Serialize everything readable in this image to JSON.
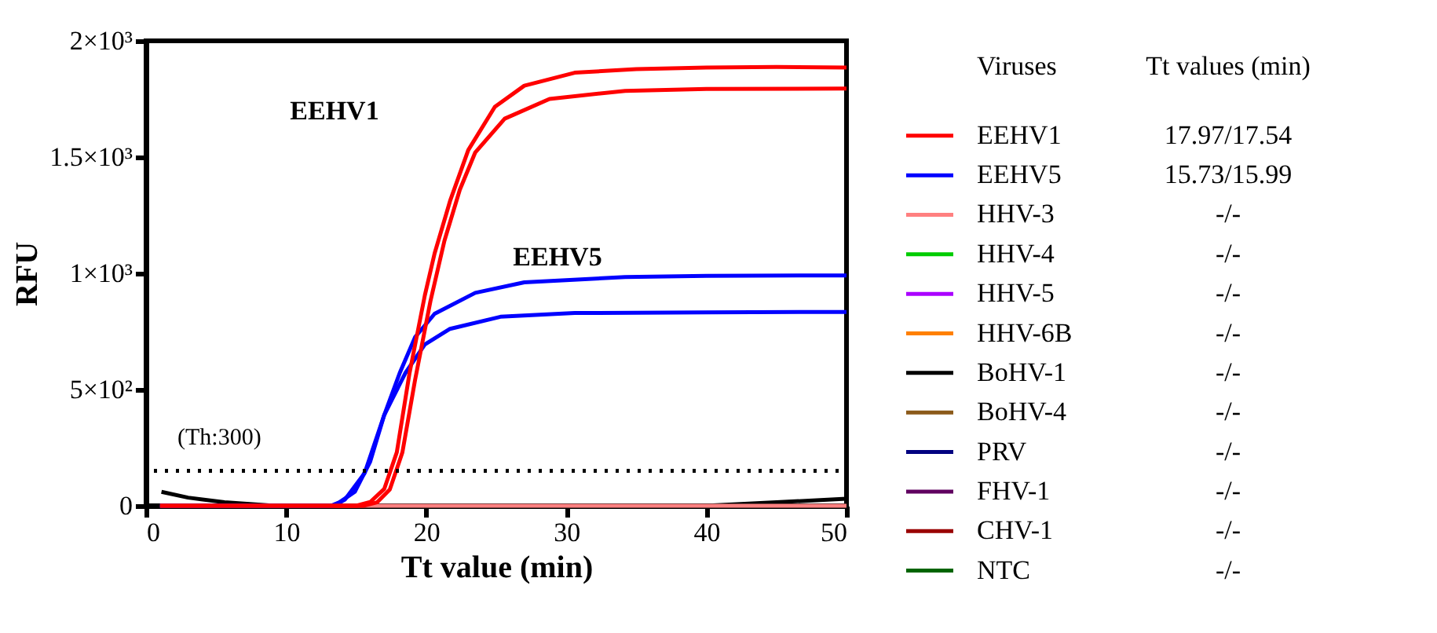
{
  "chart_data": {
    "type": "line",
    "xlabel": "Tt value (min)",
    "ylabel": "RFU",
    "legend_title": "Viruses",
    "xlim": [
      0,
      50
    ],
    "xticks": [
      0,
      10,
      20,
      30,
      40,
      50
    ],
    "ylim": [
      0,
      2000
    ],
    "yticks": [
      0,
      {
        "value": 500,
        "label": "5×10²"
      },
      {
        "value": 1000,
        "label": "1×10³"
      },
      {
        "value": 1500,
        "label": "1.5×10³"
      },
      {
        "value": 2000,
        "label": "2×10³"
      }
    ],
    "grid": false,
    "legend": "right",
    "marker": "none",
    "line_style": "solid",
    "ref_lines": [
      {
        "axis": "y",
        "value": 150,
        "line_style": "dotted",
        "color": "#000000"
      }
    ],
    "annotations": [
      "EEHV1",
      "EEHV5",
      "(Th:300)",
      "Tt values (min)",
      "17.97/17.54",
      "15.73/15.99",
      "-/-",
      "-/-",
      "-/-",
      "-/-",
      "-/-",
      "-/-",
      "-/-",
      "-/-",
      "-/-",
      "-/-"
    ],
    "series": [
      {
        "name": "EEHV1",
        "color": "#ff0000",
        "x": [
          1,
          10,
          15,
          16,
          17,
          17.9,
          18.8,
          19.9,
          20.6,
          21.7,
          23,
          24.9,
          27,
          30.6,
          35,
          40,
          45,
          50
        ],
        "values": [
          0,
          0,
          0,
          16,
          72,
          230,
          568,
          905,
          1086,
          1311,
          1530,
          1716,
          1807,
          1863,
          1878,
          1885,
          1888,
          1885
        ]
      },
      {
        "color": "#ff0000",
        "x": [
          1,
          10,
          15.5,
          16.5,
          17.4,
          18.3,
          19.2,
          20.3,
          21.3,
          22.4,
          23.5,
          25.6,
          28.8,
          34.2,
          40,
          50
        ],
        "values": [
          0,
          0,
          0,
          15,
          70,
          230,
          540,
          880,
          1140,
          1360,
          1520,
          1665,
          1750,
          1785,
          1793,
          1795
        ]
      },
      {
        "name": "EEHV5",
        "color": "#0000ff",
        "x": [
          1,
          10,
          13.2,
          13.8,
          14.9,
          16,
          17,
          18.1,
          19.2,
          20.6,
          23.5,
          27,
          34.2,
          40,
          50
        ],
        "values": [
          0,
          0,
          0,
          15,
          60,
          190,
          390,
          570,
          725,
          826,
          916,
          961,
          984,
          989,
          991
        ]
      },
      {
        "color": "#0000ff",
        "x": [
          1,
          10,
          13.4,
          14.2,
          15.6,
          17,
          18.5,
          19.9,
          21.7,
          25.3,
          30.6,
          40,
          50
        ],
        "values": [
          0,
          0,
          0,
          27,
          140,
          390,
          570,
          694,
          761,
          813,
          829,
          832,
          834
        ]
      },
      {
        "name": "HHV-3",
        "color": "#ff8080",
        "x": [
          1,
          50
        ],
        "values": [
          0,
          0
        ]
      },
      {
        "name": "HHV-4",
        "color": "#00cc00"
      },
      {
        "name": "HHV-5",
        "color": "#aa00ff"
      },
      {
        "name": "HHV-6B",
        "color": "#ff8000"
      },
      {
        "name": "BoHV-1",
        "color": "#000000",
        "x": [
          1.1,
          3,
          5.6,
          9.2,
          20,
          30,
          39.9,
          45,
          50
        ],
        "values": [
          60,
          35,
          15,
          0,
          0,
          0,
          0,
          15,
          30
        ]
      },
      {
        "name": "BoHV-4",
        "color": "#8b5a1a"
      },
      {
        "name": "PRV",
        "color": "#000080"
      },
      {
        "name": "FHV-1",
        "color": "#600060"
      },
      {
        "name": "CHV-1",
        "color": "#990000"
      },
      {
        "name": "NTC",
        "color": "#006400"
      }
    ]
  }
}
